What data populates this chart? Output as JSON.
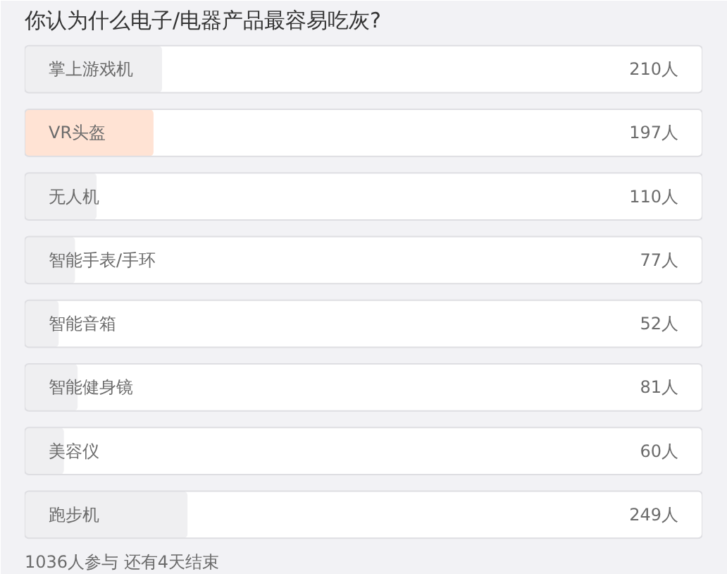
{
  "chart_data": {
    "type": "bar",
    "orientation": "horizontal",
    "title": "你认为什么电子/电器产品最容易吃灰?",
    "categories": [
      "掌上游戏机",
      "VR头盔",
      "无人机",
      "智能手表/手环",
      "智能音箱",
      "智能健身镜",
      "美容仪",
      "跑步机"
    ],
    "values": [
      210,
      197,
      110,
      77,
      52,
      81,
      60,
      249
    ],
    "value_labels": [
      "210人",
      "197人",
      "110人",
      "77人",
      "52人",
      "81人",
      "60人",
      "249人"
    ],
    "colors": [
      "#efeff1",
      "#ffe3d4",
      "#efeff1",
      "#efeff1",
      "#efeff1",
      "#efeff1",
      "#efeff1",
      "#efeff1"
    ],
    "xlim": [
      0,
      1036
    ],
    "annotations": [
      "1036人参与 还有4天结束"
    ]
  }
}
